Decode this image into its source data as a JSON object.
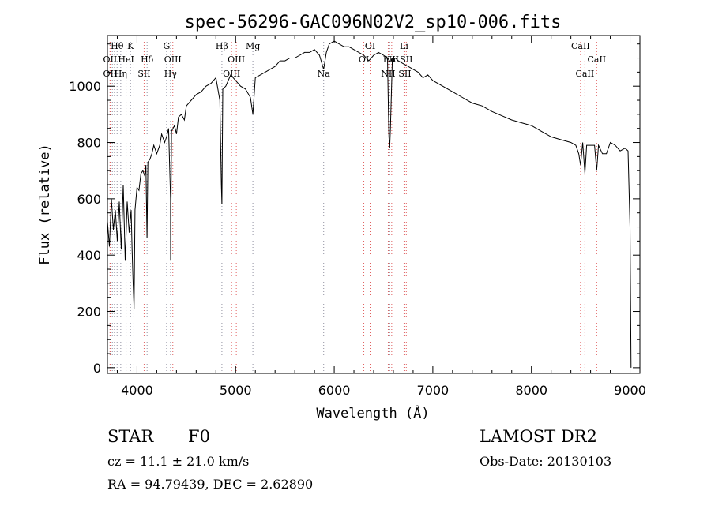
{
  "chart_data": {
    "type": "line",
    "title": "spec-56296-GAC096N02V2_sp10-006.fits",
    "xlabel": "Wavelength (Å)",
    "ylabel": "Flux (relative)",
    "xlim": [
      3700,
      9100
    ],
    "ylim": [
      -20,
      1180
    ],
    "xticks": [
      4000,
      5000,
      6000,
      7000,
      8000,
      9000
    ],
    "yticks": [
      0,
      200,
      400,
      600,
      800,
      1000
    ],
    "series": [
      {
        "x": [
          3700,
          3720,
          3740,
          3760,
          3780,
          3800,
          3820,
          3840,
          3860,
          3880,
          3900,
          3920,
          3940,
          3950,
          3960,
          3970,
          3980,
          4000,
          4020,
          4040,
          4060,
          4080,
          4090,
          4101,
          4110,
          4130,
          4150,
          4170,
          4200,
          4230,
          4250,
          4280,
          4300,
          4320,
          4340,
          4341,
          4350,
          4380,
          4400,
          4420,
          4450,
          4480,
          4500,
          4550,
          4600,
          4650,
          4700,
          4750,
          4800,
          4840,
          4855,
          4861,
          4870,
          4900,
          4950,
          5000,
          5050,
          5100,
          5150,
          5175,
          5200,
          5250,
          5300,
          5350,
          5400,
          5450,
          5500,
          5550,
          5600,
          5650,
          5700,
          5750,
          5800,
          5850,
          5893,
          5920,
          5950,
          6000,
          6050,
          6100,
          6150,
          6200,
          6250,
          6300,
          6350,
          6400,
          6450,
          6500,
          6540,
          6555,
          6563,
          6570,
          6590,
          6620,
          6650,
          6700,
          6750,
          6800,
          6850,
          6900,
          6950,
          7000,
          7100,
          7200,
          7300,
          7400,
          7500,
          7600,
          7700,
          7800,
          7900,
          8000,
          8100,
          8200,
          8300,
          8400,
          8450,
          8480,
          8498,
          8520,
          8542,
          8560,
          8600,
          8640,
          8662,
          8680,
          8720,
          8760,
          8800,
          8850,
          8900,
          8950,
          8980,
          9000,
          9010
        ],
        "y": [
          520,
          430,
          600,
          490,
          560,
          450,
          590,
          420,
          650,
          380,
          590,
          480,
          560,
          420,
          300,
          210,
          560,
          640,
          630,
          690,
          700,
          680,
          720,
          460,
          730,
          740,
          760,
          790,
          760,
          790,
          830,
          800,
          820,
          850,
          600,
          380,
          840,
          860,
          830,
          890,
          900,
          880,
          930,
          950,
          970,
          980,
          1000,
          1010,
          1030,
          950,
          650,
          580,
          990,
          1000,
          1040,
          1020,
          1000,
          990,
          960,
          900,
          1030,
          1040,
          1050,
          1060,
          1070,
          1090,
          1090,
          1100,
          1100,
          1110,
          1120,
          1120,
          1130,
          1110,
          1060,
          1120,
          1150,
          1160,
          1150,
          1140,
          1140,
          1130,
          1120,
          1110,
          1090,
          1110,
          1120,
          1110,
          1100,
          820,
          780,
          850,
          1100,
          1100,
          1090,
          1080,
          1070,
          1060,
          1050,
          1030,
          1040,
          1020,
          1000,
          980,
          960,
          940,
          930,
          910,
          895,
          880,
          870,
          860,
          840,
          820,
          810,
          800,
          790,
          760,
          720,
          800,
          690,
          790,
          790,
          790,
          700,
          790,
          760,
          760,
          800,
          790,
          770,
          780,
          770,
          500,
          0
        ]
      }
    ],
    "lines": [
      {
        "wl": 3727,
        "color": "#e06060",
        "label": "OII",
        "row": 1
      },
      {
        "wl": 3727,
        "color": "#e06060",
        "label": "OII",
        "row": 2
      },
      {
        "wl": 3750,
        "color": "#9090a0",
        "label": "",
        "row": 0
      },
      {
        "wl": 3771,
        "color": "#9090a0",
        "label": "",
        "row": 0
      },
      {
        "wl": 3798,
        "color": "#9090a0",
        "label": "Hθ",
        "row": 0
      },
      {
        "wl": 3835,
        "color": "#9090a0",
        "label": "Hη",
        "row": 2
      },
      {
        "wl": 3889,
        "color": "#9090a0",
        "label": "HeI",
        "row": 1
      },
      {
        "wl": 3934,
        "color": "#9090a0",
        "label": "K",
        "row": 0
      },
      {
        "wl": 3968,
        "color": "#9090a0",
        "label": "",
        "row": 0
      },
      {
        "wl": 4072,
        "color": "#e06060",
        "label": "SII",
        "row": 2
      },
      {
        "wl": 4102,
        "color": "#9090a0",
        "label": "Hδ",
        "row": 1
      },
      {
        "wl": 4300,
        "color": "#9090a0",
        "label": "G",
        "row": 0
      },
      {
        "wl": 4340,
        "color": "#9090a0",
        "label": "Hγ",
        "row": 2
      },
      {
        "wl": 4363,
        "color": "#e06060",
        "label": "OIII",
        "row": 1
      },
      {
        "wl": 4861,
        "color": "#9090a0",
        "label": "Hβ",
        "row": 0
      },
      {
        "wl": 4959,
        "color": "#e06060",
        "label": "OIII",
        "row": 2
      },
      {
        "wl": 5007,
        "color": "#e06060",
        "label": "OIII",
        "row": 1
      },
      {
        "wl": 5175,
        "color": "#9090a0",
        "label": "Mg",
        "row": 0
      },
      {
        "wl": 5893,
        "color": "#9090a0",
        "label": "Na",
        "row": 2
      },
      {
        "wl": 6300,
        "color": "#e06060",
        "label": "OI",
        "row": 1
      },
      {
        "wl": 6364,
        "color": "#e06060",
        "label": "OI",
        "row": 0
      },
      {
        "wl": 6548,
        "color": "#e06060",
        "label": "NII",
        "row": 2
      },
      {
        "wl": 6563,
        "color": "#9090a0",
        "label": "Hα",
        "row": 1
      },
      {
        "wl": 6583,
        "color": "#e06060",
        "label": "NII",
        "row": 1
      },
      {
        "wl": 6708,
        "color": "#9090a0",
        "label": "Li",
        "row": 0
      },
      {
        "wl": 6716,
        "color": "#e06060",
        "label": "SII",
        "row": 2
      },
      {
        "wl": 6731,
        "color": "#e06060",
        "label": "SII",
        "row": 1
      },
      {
        "wl": 8498,
        "color": "#e06060",
        "label": "CaII",
        "row": 0
      },
      {
        "wl": 8542,
        "color": "#e06060",
        "label": "CaII",
        "row": 2
      },
      {
        "wl": 8662,
        "color": "#e06060",
        "label": "CaII",
        "row": 1
      }
    ]
  },
  "info": {
    "star_label": "STAR",
    "subclass": "F0",
    "survey": "LAMOST DR2",
    "cz": "cz = 11.1 ± 21.0 km/s",
    "obs_date": "Obs-Date: 20130103",
    "coords": "RA =  94.79439, DEC =    2.62890"
  }
}
